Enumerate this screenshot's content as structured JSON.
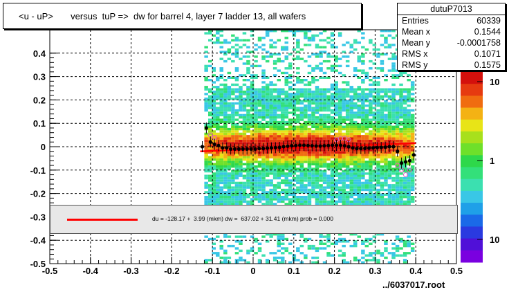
{
  "title": "<u - uP>       versus  tuP =>  dw for barrel 4, layer 7 ladder 13, all wafers",
  "stats": {
    "name": "dutuP7013",
    "rows": [
      {
        "key": "Entries",
        "value": "60339"
      },
      {
        "key": "Mean x",
        "value": "0.1544"
      },
      {
        "key": "Mean y",
        "value": "-0.0001758"
      },
      {
        "key": "RMS x",
        "value": "0.1071"
      },
      {
        "key": "RMS y",
        "value": "0.1575"
      }
    ]
  },
  "legend_text": "du = -128.17 +  3.99 (mkm) dw =  637.02 + 31.41 (mkm) prob = 0.000",
  "file_label": "../6037017.root",
  "colors": {
    "fit_line": "#ff0000",
    "profile_points": "#000000",
    "profile_open": "#e060c0"
  },
  "chart_data": {
    "type": "heatmap",
    "xlim": [
      -0.5,
      0.5
    ],
    "ylim": [
      -0.5,
      0.5
    ],
    "x_ticks": [
      "-0.5",
      "-0.4",
      "-0.3",
      "-0.2",
      "-0.1",
      "0",
      "0.1",
      "0.2",
      "0.3",
      "0.4",
      "0.5"
    ],
    "y_ticks": [
      "-0.5",
      "-0.4",
      "-0.3",
      "-0.2",
      "-0.1",
      "0",
      "0.1",
      "0.2",
      "0.3",
      "0.4"
    ],
    "colorbar_ticks": [
      "10",
      "1",
      "10"
    ],
    "grid": true,
    "occupied_x_range": [
      -0.12,
      0.39
    ],
    "profile": {
      "x": [
        -0.125,
        -0.115,
        -0.105,
        -0.095,
        -0.085,
        -0.075,
        -0.065,
        -0.055,
        -0.045,
        -0.035,
        -0.025,
        -0.015,
        -0.005,
        0.005,
        0.015,
        0.025,
        0.035,
        0.045,
        0.055,
        0.065,
        0.075,
        0.085,
        0.095,
        0.105,
        0.115,
        0.125,
        0.135,
        0.145,
        0.155,
        0.165,
        0.175,
        0.185,
        0.195,
        0.205,
        0.215,
        0.225,
        0.235,
        0.245,
        0.255,
        0.265,
        0.275,
        0.285,
        0.295,
        0.305,
        0.315,
        0.325,
        0.335,
        0.345,
        0.355,
        0.365,
        0.375,
        0.385,
        0.395
      ],
      "y": [
        0.0,
        0.08,
        0.02,
        0.01,
        0.005,
        -0.005,
        -0.005,
        -0.01,
        -0.01,
        -0.01,
        -0.01,
        -0.01,
        -0.01,
        -0.01,
        -0.008,
        -0.008,
        -0.006,
        -0.005,
        -0.004,
        -0.003,
        0.0,
        0.002,
        0.004,
        0.005,
        0.006,
        0.006,
        0.005,
        0.004,
        0.003,
        0.003,
        0.004,
        0.005,
        0.006,
        0.006,
        0.006,
        0.004,
        0.0,
        -0.005,
        -0.008,
        -0.008,
        -0.007,
        -0.006,
        -0.005,
        -0.004,
        -0.003,
        -0.002,
        -0.0,
        0.0,
        -0.02,
        -0.07,
        -0.065,
        -0.06,
        -0.035
      ]
    },
    "profile_open": {
      "x": [
        -0.105,
        -0.095,
        0.205,
        0.215,
        0.225,
        0.235,
        0.355,
        0.365,
        0.375,
        0.385
      ],
      "y": [
        0.05,
        0.04,
        0.03,
        0.035,
        0.035,
        0.03,
        -0.08,
        -0.1,
        -0.12,
        -0.1
      ]
    },
    "fit_line": {
      "x": [
        -0.13,
        0.4
      ],
      "y": [
        -0.02,
        0.015
      ]
    }
  }
}
